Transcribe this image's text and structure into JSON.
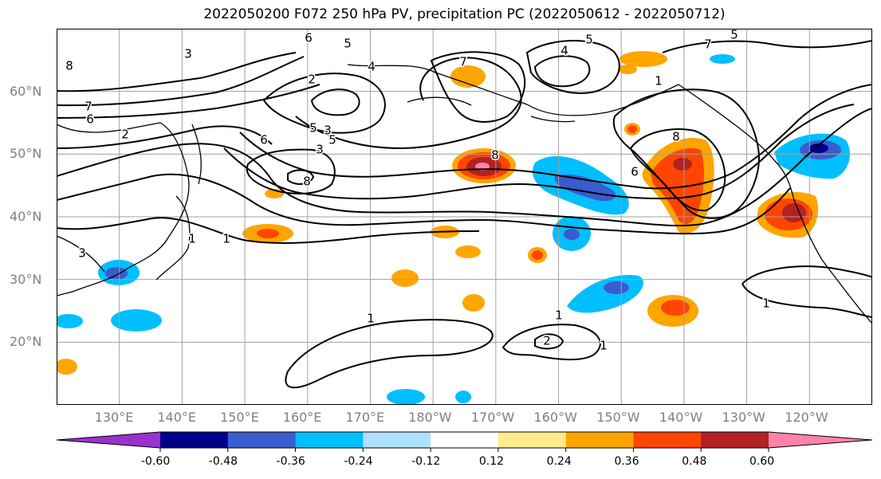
{
  "title": "2022050200 F072 250 hPa PV, precipitation PC (2022050612 - 2022050712)",
  "map": {
    "projection": "PlateCarree",
    "lon_range_east": [
      120,
      250
    ],
    "lat_range": [
      10,
      70
    ],
    "lat_ticks": [
      {
        "lat": 60,
        "label": "60°N"
      },
      {
        "lat": 50,
        "label": "50°N"
      },
      {
        "lat": 40,
        "label": "40°N"
      },
      {
        "lat": 30,
        "label": "30°N"
      },
      {
        "lat": 20,
        "label": "20°N"
      }
    ],
    "lon_ticks": [
      {
        "lon": 130,
        "label": "130°E"
      },
      {
        "lon": 140,
        "label": "140°E"
      },
      {
        "lon": 150,
        "label": "150°E"
      },
      {
        "lon": 160,
        "label": "160°E"
      },
      {
        "lon": 170,
        "label": "170°E"
      },
      {
        "lon": 180,
        "label": "180°W"
      },
      {
        "lon": 190,
        "label": "170°W"
      },
      {
        "lon": 200,
        "label": "160°W"
      },
      {
        "lon": 210,
        "label": "150°W"
      },
      {
        "lon": 220,
        "label": "140°W"
      },
      {
        "lon": 230,
        "label": "130°W"
      },
      {
        "lon": 240,
        "label": "120°W"
      }
    ],
    "grid": true,
    "contour_labels": [
      "1",
      "1",
      "1",
      "1",
      "1",
      "1",
      "1",
      "2",
      "2",
      "2",
      "3",
      "3",
      "3",
      "3",
      "4",
      "4",
      "5",
      "5",
      "5",
      "5",
      "5",
      "6",
      "6",
      "6",
      "6",
      "7",
      "7",
      "7",
      "8",
      "8",
      "8",
      "8"
    ]
  },
  "colorbar": {
    "levels": [
      "-0.60",
      "-0.48",
      "-0.36",
      "-0.24",
      "-0.12",
      "0.12",
      "0.24",
      "0.36",
      "0.48",
      "0.60"
    ],
    "colors": [
      "#9932cc",
      "#00008b",
      "#3a5ccc",
      "#00bfff",
      "#b0e0ff",
      "#ffffff",
      "#ffeb8a",
      "#ffa500",
      "#ff4500",
      "#b22222",
      "#ff82ab"
    ]
  }
}
